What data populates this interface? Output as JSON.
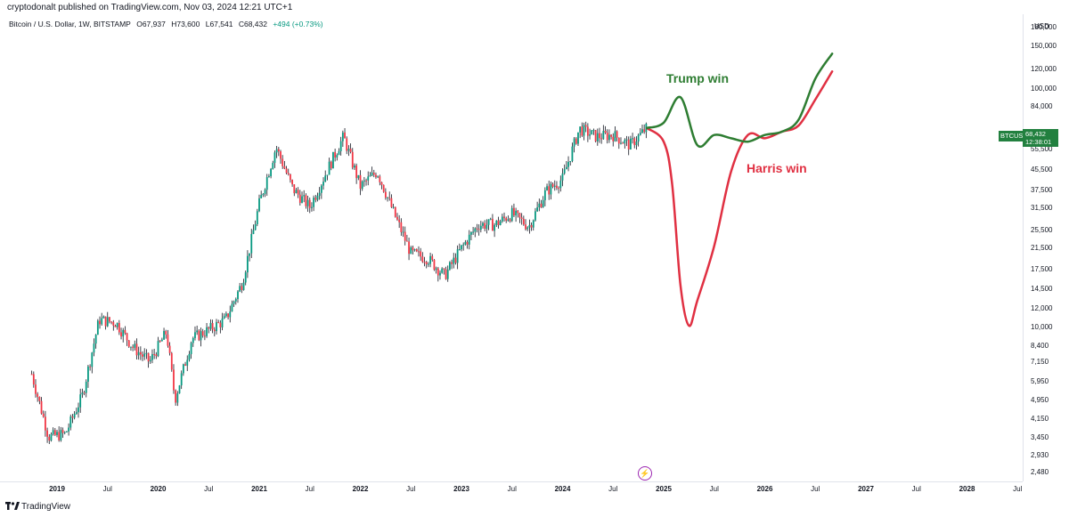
{
  "header": {
    "publisher_line": "cryptodonalt published on TradingView.com, Nov 03, 2024 12:21 UTC+1"
  },
  "legend": {
    "symbol": "Bitcoin / U.S. Dollar, 1W, BITSTAMP",
    "open": "O67,937",
    "high": "H73,600",
    "low": "L67,541",
    "close": "C68,432",
    "change": "+494 (+0.73%)"
  },
  "price_scale": {
    "currency": "USD",
    "ticks": [
      "180,000",
      "150,000",
      "120,000",
      "100,000",
      "84,000",
      "55,500",
      "45,500",
      "37,500",
      "31,500",
      "25,500",
      "21,500",
      "17,500",
      "14,500",
      "12,000",
      "10,000",
      "8,400",
      "7,150",
      "5,950",
      "4,950",
      "4,150",
      "3,450",
      "2,930",
      "2,480"
    ]
  },
  "time_axis": {
    "ticks": [
      {
        "label": "2019",
        "year": true
      },
      {
        "label": "Jul",
        "year": false
      },
      {
        "label": "2020",
        "year": true
      },
      {
        "label": "Jul",
        "year": false
      },
      {
        "label": "2021",
        "year": true
      },
      {
        "label": "Jul",
        "year": false
      },
      {
        "label": "2022",
        "year": true
      },
      {
        "label": "Jul",
        "year": false
      },
      {
        "label": "2023",
        "year": true
      },
      {
        "label": "Jul",
        "year": false
      },
      {
        "label": "2024",
        "year": true
      },
      {
        "label": "Jul",
        "year": false
      },
      {
        "label": "2025",
        "year": true
      },
      {
        "label": "Jul",
        "year": false
      },
      {
        "label": "2026",
        "year": true
      },
      {
        "label": "Jul",
        "year": false
      },
      {
        "label": "2027",
        "year": true
      },
      {
        "label": "Jul",
        "year": false
      },
      {
        "label": "2028",
        "year": true
      },
      {
        "label": "Jul",
        "year": false
      }
    ]
  },
  "badges": {
    "symbol": "BTCUSD",
    "price": "68,432",
    "countdown": "12:38:01"
  },
  "annotations": {
    "trump": "Trump win",
    "harris": "Harris win"
  },
  "footer": {
    "brand": "TradingView"
  },
  "colors": {
    "up": "#089981",
    "down": "#f23645",
    "trump_line": "#2e7d32",
    "harris_line": "#e03042",
    "badge": "#22803f"
  },
  "chart_data": {
    "type": "candlestick",
    "scale": "log",
    "price_series": {
      "name": "BTCUSD",
      "x": [
        "2018-10",
        "2018-12",
        "2019-02",
        "2019-04",
        "2019-06",
        "2019-08",
        "2019-10",
        "2019-12",
        "2020-02",
        "2020-03",
        "2020-05",
        "2020-07",
        "2020-09",
        "2020-11",
        "2021-01",
        "2021-03",
        "2021-05",
        "2021-07",
        "2021-09",
        "2021-11",
        "2022-01",
        "2022-03",
        "2022-05",
        "2022-07",
        "2022-09",
        "2022-11",
        "2023-01",
        "2023-03",
        "2023-05",
        "2023-07",
        "2023-09",
        "2023-11",
        "2024-01",
        "2024-03",
        "2024-05",
        "2024-07",
        "2024-09",
        "2024-11"
      ],
      "values": [
        6400,
        3500,
        3600,
        5200,
        10800,
        10500,
        8300,
        7200,
        9600,
        5000,
        9000,
        9800,
        10800,
        15500,
        33000,
        57000,
        38000,
        32000,
        45000,
        63000,
        39000,
        45000,
        30000,
        20500,
        19500,
        16500,
        21500,
        27000,
        27000,
        30000,
        26500,
        37000,
        42000,
        68000,
        63000,
        64000,
        58000,
        68432
      ]
    },
    "projections": [
      {
        "name": "Trump win",
        "x": [
          "2024-11",
          "2025-01",
          "2025-03",
          "2025-05",
          "2025-07",
          "2025-09",
          "2025-11",
          "2026-01",
          "2026-03",
          "2026-05",
          "2026-07",
          "2026-09"
        ],
        "values": [
          68432,
          72000,
          92000,
          58000,
          64000,
          62000,
          60000,
          64000,
          66000,
          74000,
          110000,
          140000
        ]
      },
      {
        "name": "Harris win",
        "x": [
          "2024-11",
          "2025-01",
          "2025-02",
          "2025-03",
          "2025-04",
          "2025-05",
          "2025-07",
          "2025-09",
          "2025-11",
          "2026-01",
          "2026-03",
          "2026-05",
          "2026-07",
          "2026-09"
        ],
        "values": [
          68432,
          60000,
          40000,
          15000,
          10200,
          13000,
          22000,
          45000,
          64000,
          62000,
          66000,
          70000,
          90000,
          118000
        ]
      }
    ]
  }
}
